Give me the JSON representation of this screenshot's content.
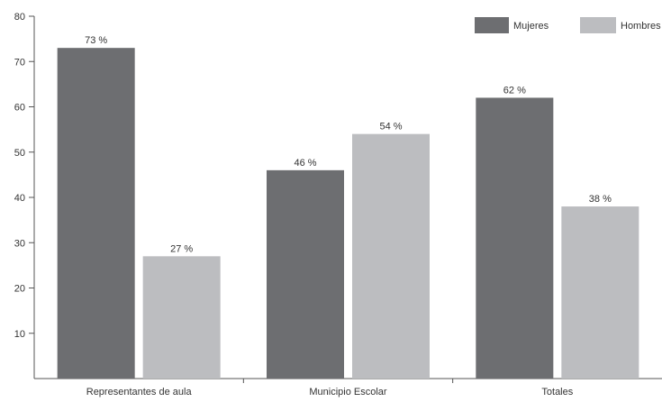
{
  "chart_data": {
    "type": "bar",
    "title": "",
    "xlabel": "",
    "ylabel": "",
    "categories": [
      "Representantes de aula",
      "Municipio Escolar",
      "Totales"
    ],
    "series": [
      {
        "name": "Mujeres",
        "color": "#6d6e71",
        "values": [
          73,
          46,
          62
        ],
        "labels": [
          "73 %",
          "46 %",
          "62 %"
        ]
      },
      {
        "name": "Hombres",
        "color": "#bcbdc0",
        "values": [
          27,
          54,
          38
        ],
        "labels": [
          "27 %",
          "54 %",
          "38 %"
        ]
      }
    ],
    "ylim": [
      0,
      80
    ],
    "yticks": [
      10,
      20,
      30,
      40,
      50,
      60,
      70,
      80
    ],
    "grid": false,
    "legend": "top-right"
  }
}
